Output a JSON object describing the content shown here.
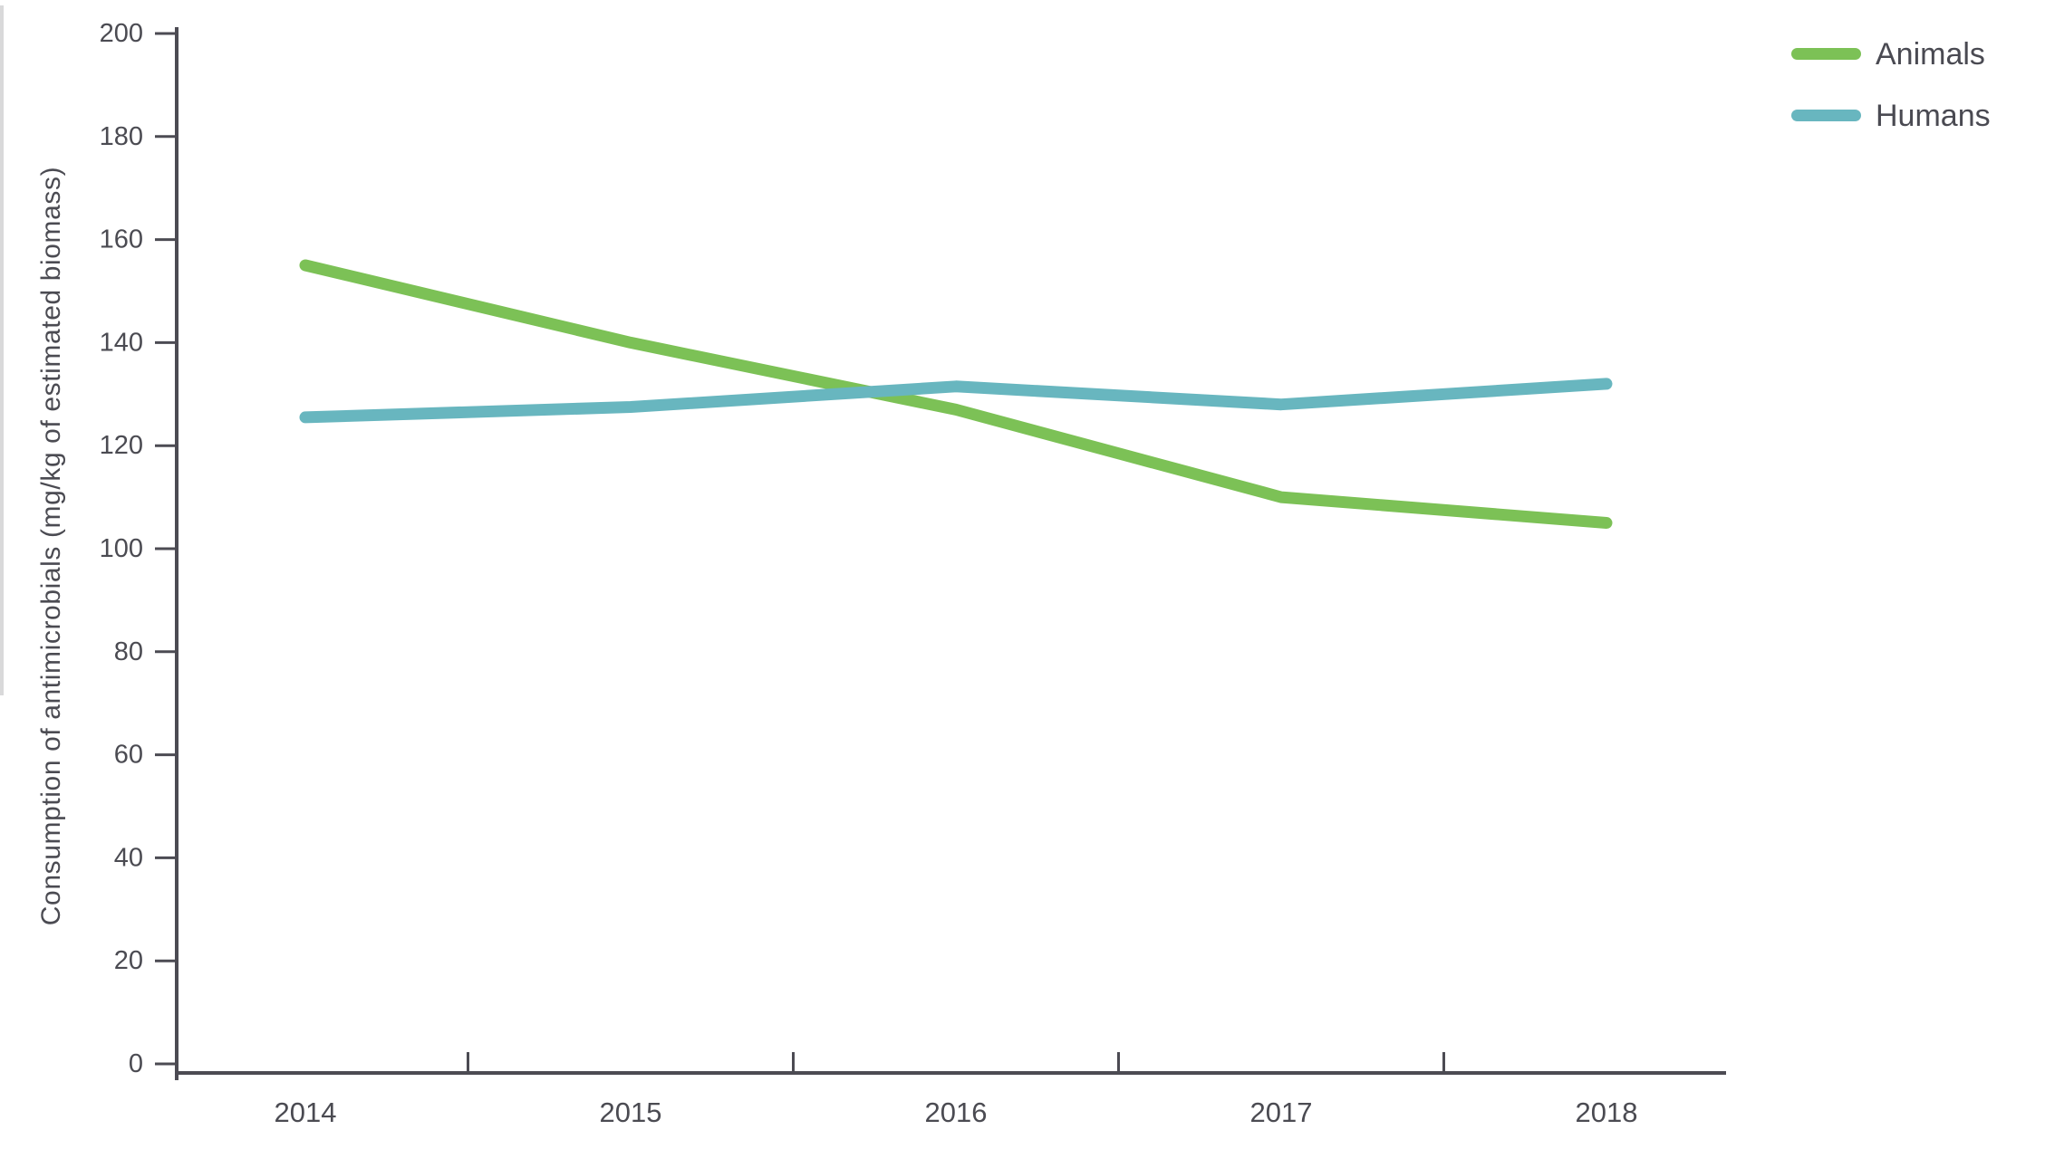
{
  "chart_data": {
    "type": "line",
    "title": "",
    "xlabel": "",
    "ylabel": "Consumption of antimicrobials (mg/kg of estimated biomass)",
    "categories": [
      "2014",
      "2015",
      "2016",
      "2017",
      "2018"
    ],
    "series": [
      {
        "name": "Animals",
        "color": "#7cc156",
        "values": [
          155,
          140,
          127,
          110,
          105
        ]
      },
      {
        "name": "Humans",
        "color": "#68b6bf",
        "values": [
          125.5,
          127.5,
          131.5,
          128,
          132
        ]
      }
    ],
    "ylim": [
      0,
      200
    ],
    "ytick_step": 20,
    "grid": false,
    "legend_position": "top-right",
    "line_width": 13
  },
  "colors": {
    "axis": "#4c4b53",
    "tick_text": "#4b4b52",
    "background": "#ffffff"
  }
}
